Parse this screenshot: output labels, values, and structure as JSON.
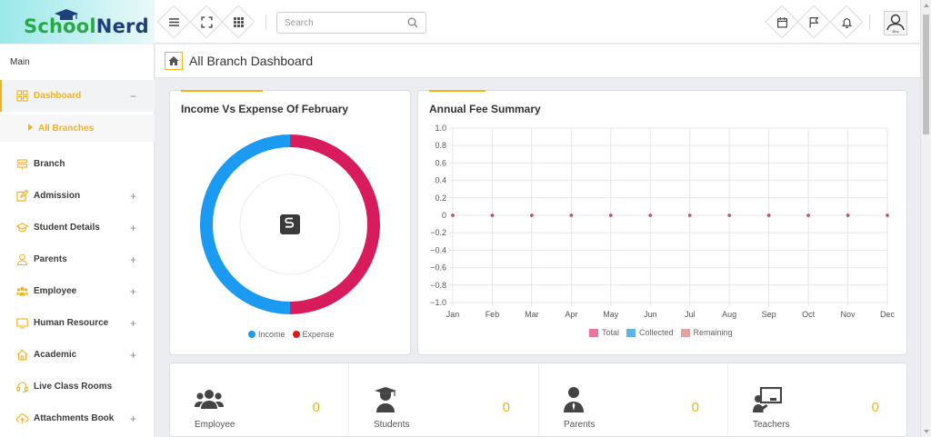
{
  "logo": {
    "part1": "Scho",
    "part2": "ol",
    "part3": "Nerd"
  },
  "toolbar": {
    "menu_icon": "hamburger-icon",
    "fullscreen_icon": "expand-icon",
    "apps_icon": "grid-icon"
  },
  "search": {
    "placeholder": "Search"
  },
  "user": {
    "avatar_label": "Bhs"
  },
  "sidebar": {
    "section": "Main",
    "items": [
      {
        "label": "Dashboard",
        "icon": "dashboard-icon",
        "toggle": "−"
      },
      {
        "label": "Branch",
        "icon": "branch-icon",
        "toggle": ""
      },
      {
        "label": "Admission",
        "icon": "edit-icon",
        "toggle": "+"
      },
      {
        "label": "Student Details",
        "icon": "graduation-cap-icon",
        "toggle": "+"
      },
      {
        "label": "Parents",
        "icon": "user-icon",
        "toggle": "+"
      },
      {
        "label": "Employee",
        "icon": "users-icon",
        "toggle": "+"
      },
      {
        "label": "Human Resource",
        "icon": "monitor-icon",
        "toggle": "+"
      },
      {
        "label": "Academic",
        "icon": "home-icon",
        "toggle": "+"
      },
      {
        "label": "Live Class Rooms",
        "icon": "headset-icon",
        "toggle": ""
      },
      {
        "label": "Attachments Book",
        "icon": "cloud-upload-icon",
        "toggle": "+"
      }
    ],
    "sub_item": "All Branches"
  },
  "page": {
    "title": "All Branch Dashboard"
  },
  "income_card": {
    "title": "Income Vs Expense Of February",
    "legend": [
      "Income",
      "Expense"
    ],
    "colors": {
      "income": "#1a9af0",
      "expense": "#d81b5c"
    }
  },
  "fee_card": {
    "title": "Annual Fee Summary",
    "legend": [
      "Total",
      "Collected",
      "Remaining"
    ],
    "colors": {
      "total": "#e8769a",
      "collected": "#5eb4e0",
      "remaining": "#e3a3a3"
    }
  },
  "chart_data": [
    {
      "type": "pie",
      "title": "Income Vs Expense Of February",
      "categories": [
        "Income",
        "Expense"
      ],
      "values": [
        50,
        50
      ]
    },
    {
      "type": "line",
      "title": "Annual Fee Summary",
      "categories": [
        "Jan",
        "Feb",
        "Mar",
        "Apr",
        "May",
        "Jun",
        "Jul",
        "Aug",
        "Sep",
        "Oct",
        "Nov",
        "Dec"
      ],
      "series": [
        {
          "name": "Total",
          "values": [
            0,
            0,
            0,
            0,
            0,
            0,
            0,
            0,
            0,
            0,
            0,
            0
          ]
        },
        {
          "name": "Collected",
          "values": [
            0,
            0,
            0,
            0,
            0,
            0,
            0,
            0,
            0,
            0,
            0,
            0
          ]
        },
        {
          "name": "Remaining",
          "values": [
            0,
            0,
            0,
            0,
            0,
            0,
            0,
            0,
            0,
            0,
            0,
            0
          ]
        }
      ],
      "yticks": [
        "1.0",
        "0.8",
        "0.6",
        "0.4",
        "0.2",
        "0",
        "−0.2",
        "−0.4",
        "−0.6",
        "−0.8",
        "−1.0"
      ],
      "ylim": [
        -1,
        1
      ],
      "grid": true,
      "legend": "bottom"
    }
  ],
  "stats": [
    {
      "label": "Employee",
      "value": "0",
      "icon": "users-icon"
    },
    {
      "label": "Students",
      "value": "0",
      "icon": "graduate-icon"
    },
    {
      "label": "Parents",
      "value": "0",
      "icon": "user-tie-icon"
    },
    {
      "label": "Teachers",
      "value": "0",
      "icon": "teacher-board-icon"
    }
  ]
}
